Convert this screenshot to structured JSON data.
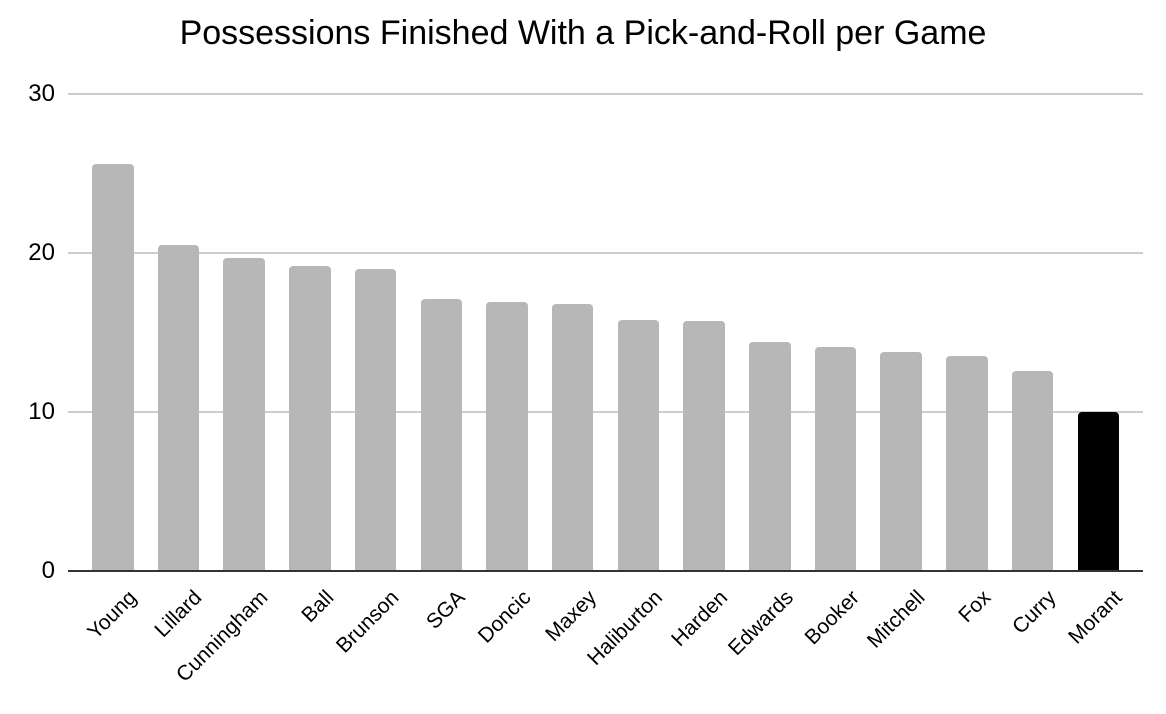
{
  "chart_data": {
    "type": "bar",
    "title": "Possessions Finished With a Pick-and-Roll per Game",
    "categories": [
      "Young",
      "Lillard",
      "Cunningham",
      "Ball",
      "Brunson",
      "SGA",
      "Doncic",
      "Maxey",
      "Haliburton",
      "Harden",
      "Edwards",
      "Booker",
      "Mitchell",
      "Fox",
      "Curry",
      "Morant"
    ],
    "values": [
      25.6,
      20.5,
      19.7,
      19.2,
      19.0,
      17.1,
      16.9,
      16.8,
      15.8,
      15.7,
      14.4,
      14.1,
      13.8,
      13.5,
      12.6,
      10.0
    ],
    "xlabel": "",
    "ylabel": "",
    "ylim": [
      0,
      30
    ],
    "yticks": [
      0,
      10,
      20,
      30
    ],
    "grid": true,
    "legend_position": "none",
    "bar_color": "#b7b7b7",
    "highlight_category": "Morant",
    "highlight_color": "#000000",
    "gridline_color": "#cdcdcd",
    "axis_color": "#333333",
    "text_color": "#000000",
    "background_color": "#ffffff"
  }
}
